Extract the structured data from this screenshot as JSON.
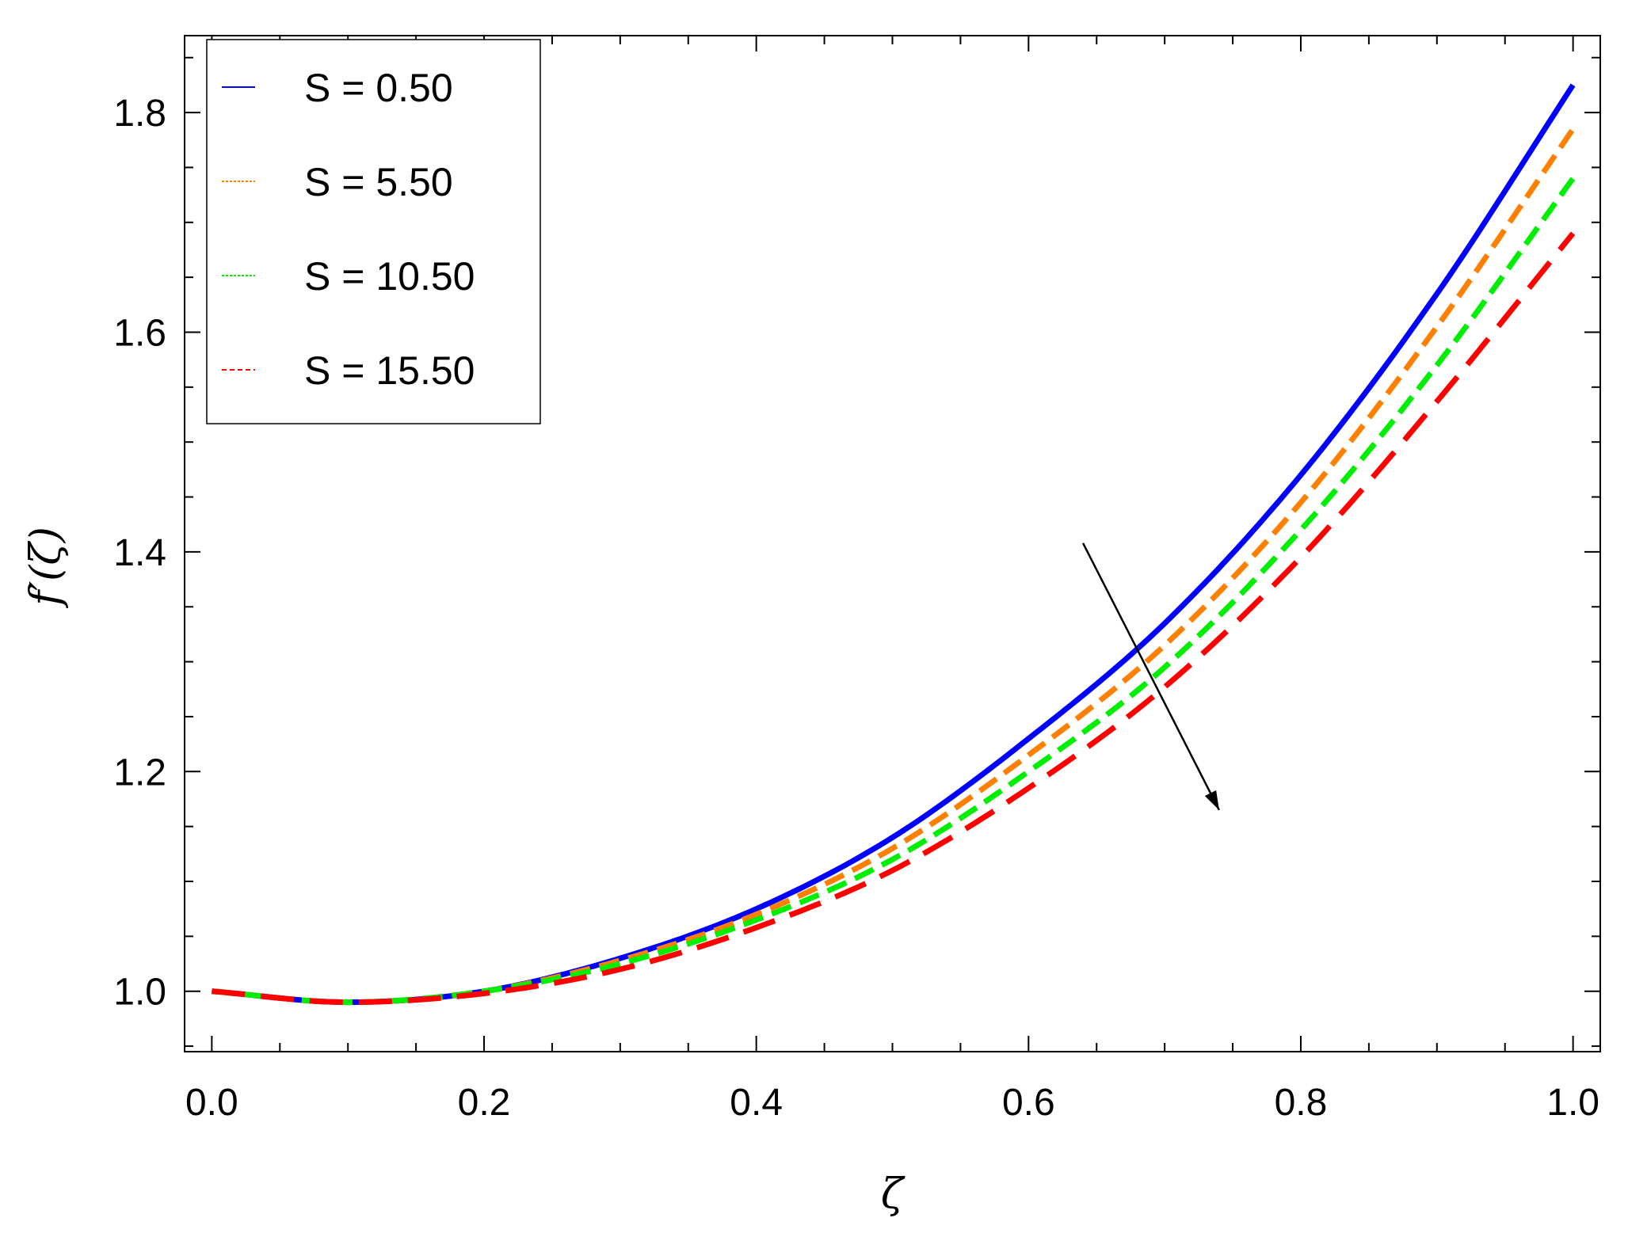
{
  "chart_data": {
    "type": "line",
    "xlabel": "ζ",
    "ylabel": "f′(ζ)",
    "xlim": [
      -0.02,
      1.02
    ],
    "ylim": [
      0.945,
      1.87
    ],
    "xticks": [
      0.0,
      0.2,
      0.4,
      0.6,
      0.8,
      1.0
    ],
    "xtick_labels": [
      "0.0",
      "0.2",
      "0.4",
      "0.6",
      "0.8",
      "1.0"
    ],
    "yticks": [
      1.0,
      1.2,
      1.4,
      1.6,
      1.8
    ],
    "ytick_labels": [
      "1.0",
      "1.2",
      "1.4",
      "1.6",
      "1.8"
    ],
    "grid": false,
    "legend_position": "top-left",
    "x": [
      0.0,
      0.1,
      0.2,
      0.3,
      0.4,
      0.5,
      0.6,
      0.7,
      0.8,
      0.9,
      1.0
    ],
    "series": [
      {
        "name": "S = 0.50",
        "color": "#0000ff",
        "style": "solid",
        "values": [
          1.0,
          0.99,
          1.0,
          1.03,
          1.075,
          1.14,
          1.23,
          1.335,
          1.47,
          1.635,
          1.825
        ]
      },
      {
        "name": "S = 5.50",
        "color": "#ff8000",
        "style": "dash",
        "values": [
          1.0,
          0.99,
          1.0,
          1.028,
          1.07,
          1.13,
          1.215,
          1.315,
          1.445,
          1.605,
          1.785
        ]
      },
      {
        "name": "S = 10.50",
        "color": "#00ee00",
        "style": "dash",
        "values": [
          1.0,
          0.99,
          1.0,
          1.025,
          1.065,
          1.12,
          1.2,
          1.295,
          1.42,
          1.57,
          1.74
        ]
      },
      {
        "name": "S = 15.50",
        "color": "#ff0000",
        "style": "longdash",
        "values": [
          1.0,
          0.99,
          0.998,
          1.02,
          1.058,
          1.11,
          1.185,
          1.277,
          1.395,
          1.537,
          1.69
        ]
      }
    ],
    "annotations": [
      {
        "type": "arrow",
        "from": [
          0.64,
          1.408
        ],
        "to": [
          0.74,
          1.165
        ],
        "color": "#000000"
      }
    ]
  }
}
